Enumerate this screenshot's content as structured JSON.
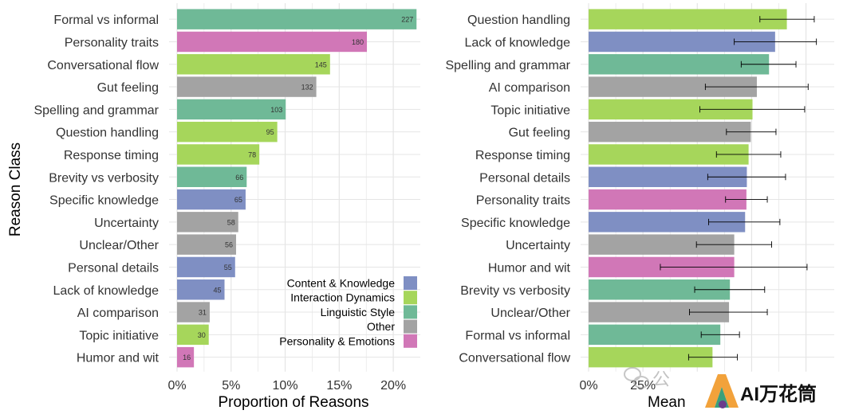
{
  "colors": {
    "Content & Knowledge": "#7f8fc3",
    "Interaction Dynamics": "#a6d65b",
    "Linguistic Style": "#6fb997",
    "Other": "#a3a3a3",
    "Personality & Emotions": "#d177b7",
    "grid": "#e5e5e5",
    "text": "#333333"
  },
  "watermark": {
    "left_text": "公",
    "brand_text": "AI万花筒"
  },
  "chart_data": [
    {
      "type": "bar",
      "orientation": "horizontal",
      "xlabel": "Proportion of Reasons",
      "ylabel": "Reason Class",
      "xlim": [
        0,
        0.225
      ],
      "xticks": [
        0,
        0.05,
        0.1,
        0.15,
        0.2
      ],
      "xtick_labels": [
        "0%",
        "5%",
        "10%",
        "15%",
        "20%"
      ],
      "grid": true,
      "legend_position": "bottom-right",
      "legend": [
        "Content & Knowledge",
        "Interaction Dynamics",
        "Linguistic Style",
        "Other",
        "Personality & Emotions"
      ],
      "bars": [
        {
          "label": "Formal vs informal",
          "count": 227,
          "value": 0.2215,
          "group": "Linguistic Style"
        },
        {
          "label": "Personality traits",
          "count": 180,
          "value": 0.1756,
          "group": "Personality & Emotions"
        },
        {
          "label": "Conversational flow",
          "count": 145,
          "value": 0.1415,
          "group": "Interaction Dynamics"
        },
        {
          "label": "Gut feeling",
          "count": 132,
          "value": 0.1288,
          "group": "Other"
        },
        {
          "label": "Spelling and grammar",
          "count": 103,
          "value": 0.1005,
          "group": "Linguistic Style"
        },
        {
          "label": "Question handling",
          "count": 95,
          "value": 0.0927,
          "group": "Interaction Dynamics"
        },
        {
          "label": "Response timing",
          "count": 78,
          "value": 0.0761,
          "group": "Interaction Dynamics"
        },
        {
          "label": "Brevity vs verbosity",
          "count": 66,
          "value": 0.0644,
          "group": "Linguistic Style"
        },
        {
          "label": "Specific knowledge",
          "count": 65,
          "value": 0.0634,
          "group": "Content & Knowledge"
        },
        {
          "label": "Uncertainty",
          "count": 58,
          "value": 0.0566,
          "group": "Other"
        },
        {
          "label": "Unclear/Other",
          "count": 56,
          "value": 0.0546,
          "group": "Other"
        },
        {
          "label": "Personal details",
          "count": 55,
          "value": 0.0537,
          "group": "Content & Knowledge"
        },
        {
          "label": "Lack of knowledge",
          "count": 45,
          "value": 0.0439,
          "group": "Content & Knowledge"
        },
        {
          "label": "AI comparison",
          "count": 31,
          "value": 0.0302,
          "group": "Other"
        },
        {
          "label": "Topic initiative",
          "count": 30,
          "value": 0.0293,
          "group": "Interaction Dynamics"
        },
        {
          "label": "Humor and wit",
          "count": 16,
          "value": 0.0156,
          "group": "Personality & Emotions"
        }
      ]
    },
    {
      "type": "bar",
      "orientation": "horizontal",
      "xlabel": "Mean",
      "ylabel": "",
      "xlim": [
        0,
        1.13
      ],
      "xticks": [
        0,
        0.25,
        0.5,
        0.75,
        1.0
      ],
      "xtick_labels": [
        "0%",
        "25%",
        "",
        "",
        ""
      ],
      "grid": true,
      "error_bars": true,
      "bars": [
        {
          "label": "Question handling",
          "value": 0.912,
          "err_low": 0.788,
          "err_high": 1.038,
          "group": "Interaction Dynamics"
        },
        {
          "label": "Lack of knowledge",
          "value": 0.858,
          "err_low": 0.67,
          "err_high": 1.048,
          "group": "Content & Knowledge"
        },
        {
          "label": "Spelling and grammar",
          "value": 0.83,
          "err_low": 0.702,
          "err_high": 0.954,
          "group": "Linguistic Style"
        },
        {
          "label": "AI comparison",
          "value": 0.774,
          "err_low": 0.537,
          "err_high": 1.01,
          "group": "Other"
        },
        {
          "label": "Topic initiative",
          "value": 0.754,
          "err_low": 0.512,
          "err_high": 0.994,
          "group": "Interaction Dynamics"
        },
        {
          "label": "Gut feeling",
          "value": 0.746,
          "err_low": 0.634,
          "err_high": 0.862,
          "group": "Other"
        },
        {
          "label": "Response timing",
          "value": 0.736,
          "err_low": 0.588,
          "err_high": 0.884,
          "group": "Interaction Dynamics"
        },
        {
          "label": "Personal details",
          "value": 0.728,
          "err_low": 0.548,
          "err_high": 0.906,
          "group": "Content & Knowledge"
        },
        {
          "label": "Personality traits",
          "value": 0.726,
          "err_low": 0.63,
          "err_high": 0.822,
          "group": "Personality & Emotions"
        },
        {
          "label": "Specific knowledge",
          "value": 0.72,
          "err_low": 0.552,
          "err_high": 0.88,
          "group": "Content & Knowledge"
        },
        {
          "label": "Uncertainty",
          "value": 0.67,
          "err_low": 0.496,
          "err_high": 0.842,
          "group": "Other"
        },
        {
          "label": "Humor and wit",
          "value": 0.67,
          "err_low": 0.33,
          "err_high": 1.005,
          "group": "Personality & Emotions"
        },
        {
          "label": "Brevity vs verbosity",
          "value": 0.65,
          "err_low": 0.488,
          "err_high": 0.81,
          "group": "Linguistic Style"
        },
        {
          "label": "Unclear/Other",
          "value": 0.646,
          "err_low": 0.464,
          "err_high": 0.822,
          "group": "Other"
        },
        {
          "label": "Formal vs informal",
          "value": 0.606,
          "err_low": 0.518,
          "err_high": 0.694,
          "group": "Linguistic Style"
        },
        {
          "label": "Conversational flow",
          "value": 0.57,
          "err_low": 0.46,
          "err_high": 0.684,
          "group": "Interaction Dynamics"
        }
      ]
    }
  ]
}
